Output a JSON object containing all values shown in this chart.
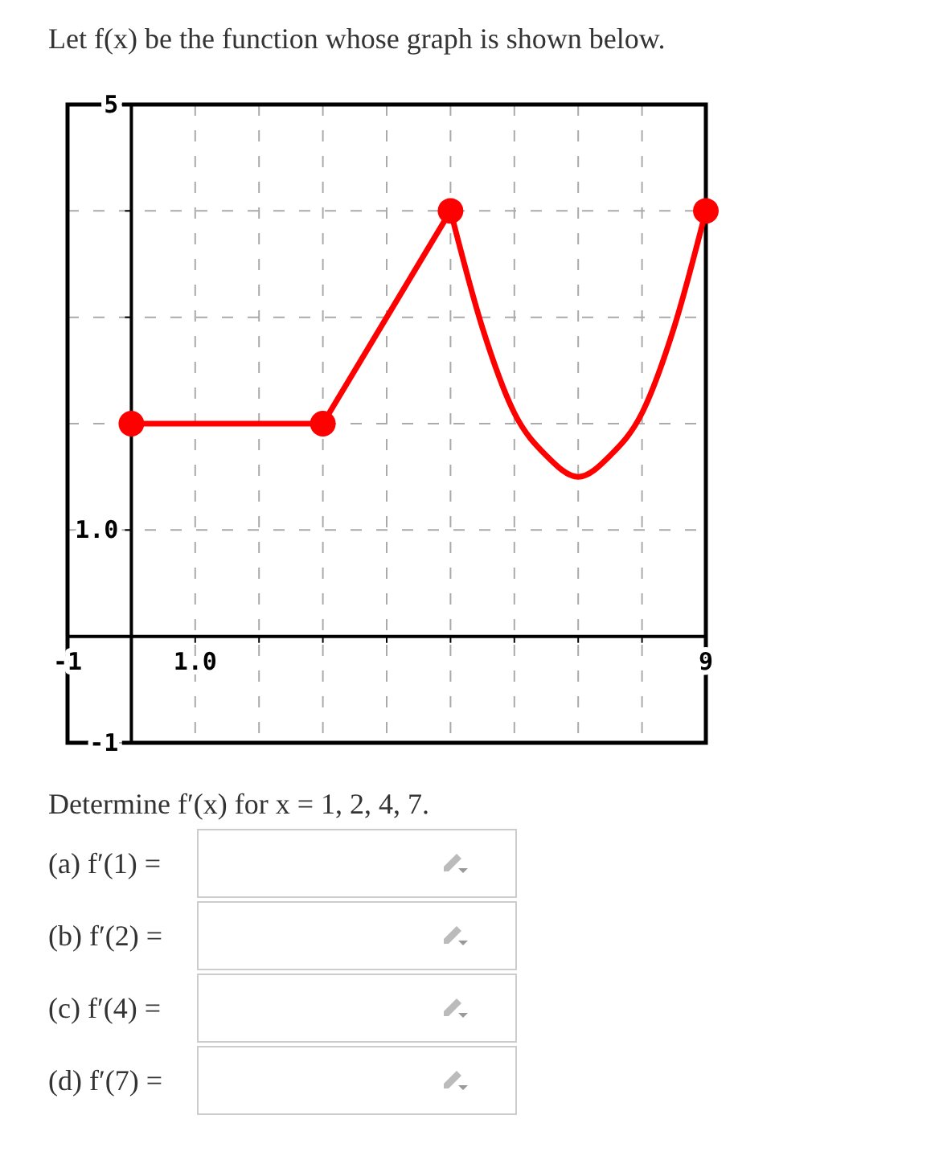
{
  "chart_data": {
    "type": "line",
    "title": "Let f(x) be the function whose graph is shown below.",
    "series": [
      {
        "type": "line",
        "color": "#ff0000",
        "x": [
          0,
          3
        ],
        "values": [
          2,
          2
        ]
      },
      {
        "type": "line",
        "color": "#ff0000",
        "x": [
          3,
          5
        ],
        "values": [
          2,
          4
        ]
      },
      {
        "type": "line",
        "color": "#ff0000",
        "x": [
          5,
          5.5,
          6,
          6.5,
          7,
          7.5,
          8,
          8.5,
          9
        ],
        "values": [
          4,
          2.9,
          2.1,
          1.7,
          1.5,
          1.7,
          2.1,
          2.9,
          4
        ]
      },
      {
        "type": "scatter",
        "color": "#ff0000",
        "marker": "circle",
        "x": [
          0,
          3,
          5,
          9
        ],
        "values": [
          2,
          2,
          4,
          4
        ]
      }
    ],
    "line_style": "solid",
    "xlim": [
      -1,
      9
    ],
    "ylim": [
      -1,
      5
    ],
    "xticks": [
      {
        "value": -1,
        "label": "-1"
      },
      {
        "value": 0,
        "label": null
      },
      {
        "value": 1,
        "label": "1.0"
      },
      {
        "value": 2,
        "label": null
      },
      {
        "value": 3,
        "label": null
      },
      {
        "value": 4,
        "label": null
      },
      {
        "value": 5,
        "label": null
      },
      {
        "value": 6,
        "label": null
      },
      {
        "value": 7,
        "label": null
      },
      {
        "value": 8,
        "label": null
      },
      {
        "value": 9,
        "label": "9"
      }
    ],
    "yticks": [
      {
        "value": -1,
        "label": "-1"
      },
      {
        "value": 0,
        "label": null
      },
      {
        "value": 1,
        "label": "1.0"
      },
      {
        "value": 2,
        "label": null
      },
      {
        "value": 3,
        "label": null
      },
      {
        "value": 4,
        "label": null
      },
      {
        "value": 5,
        "label": "5"
      }
    ],
    "grid": true,
    "annotations": [
      "Determine f′(x) for x = 1, 2, 4, 7.",
      "(a) f′(1) =",
      "(b) f′(2) =",
      "(c) f′(4) =",
      "(d) f′(7) ="
    ]
  }
}
